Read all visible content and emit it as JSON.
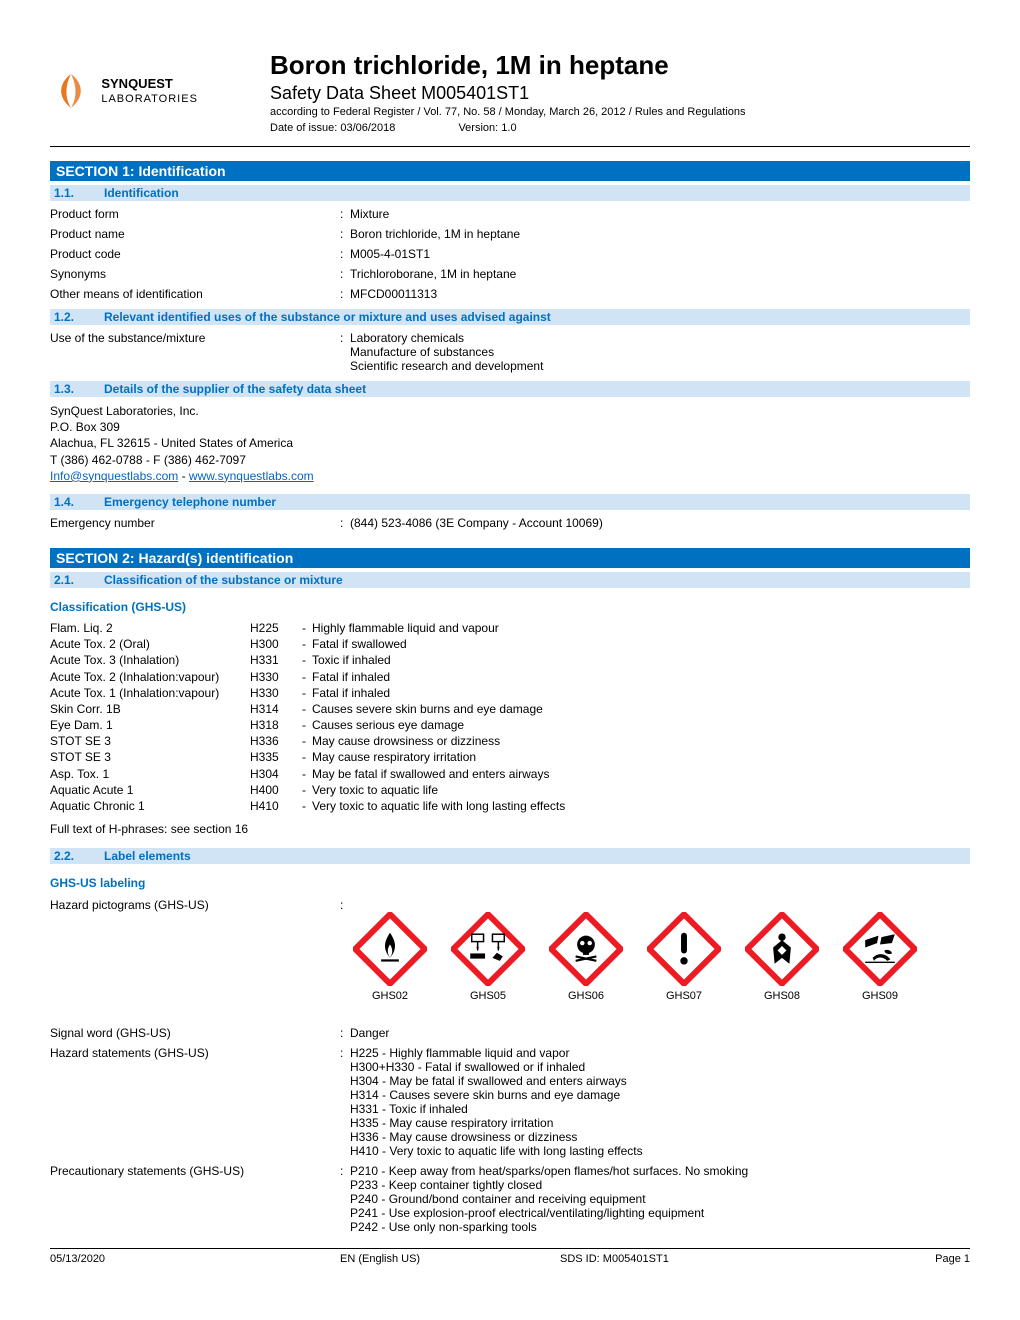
{
  "colors": {
    "section_bg": "#0070C0",
    "subsection_bg": "#D0E4F5",
    "subsection_text": "#0070C0",
    "link": "#0563C1",
    "ghs_red": "#ED1C24"
  },
  "logo": {
    "line1": "SYNQUEST",
    "line2": "LABORATORIES"
  },
  "title": "Boron trichloride, 1M in heptane",
  "subtitle": "Safety Data Sheet M005401ST1",
  "regulation": "according to Federal Register / Vol. 77, No. 58 / Monday, March 26, 2012 / Rules and Regulations",
  "date_of_issue_label": "Date of issue:",
  "date_of_issue": "03/06/2018",
  "version_label": "Version:",
  "version": "1.0",
  "section1": {
    "title": "SECTION 1: Identification",
    "s11": {
      "num": "1.1.",
      "title": "Identification"
    },
    "s12": {
      "num": "1.2.",
      "title": "Relevant identified uses of the substance or mixture and uses advised against"
    },
    "s13": {
      "num": "1.3.",
      "title": "Details of the supplier of the safety data sheet"
    },
    "s14": {
      "num": "1.4.",
      "title": "Emergency telephone number"
    },
    "fields": {
      "product_form": {
        "label": "Product form",
        "value": "Mixture"
      },
      "product_name": {
        "label": "Product name",
        "value": "Boron trichloride, 1M in heptane"
      },
      "product_code": {
        "label": "Product code",
        "value": "M005-4-01ST1"
      },
      "synonyms": {
        "label": "Synonyms",
        "value": "Trichloroborane, 1M in heptane"
      },
      "other_id": {
        "label": "Other means of identification",
        "value": "MFCD00011313"
      },
      "use": {
        "label": "Use of the substance/mixture",
        "value": "Laboratory chemicals\nManufacture of substances\nScientific research and development"
      },
      "emergency": {
        "label": "Emergency number",
        "value": "(844) 523-4086 (3E Company - Account 10069)"
      }
    },
    "supplier": {
      "name": "SynQuest Laboratories, Inc.",
      "pobox": "P.O. Box 309",
      "city": "Alachua, FL 32615 - United States of America",
      "phone": "T (386) 462-0788 - F (386) 462-7097",
      "email": "Info@synquestlabs.com",
      "sep": " - ",
      "web": "www.synquestlabs.com"
    }
  },
  "section2": {
    "title": "SECTION 2: Hazard(s) identification",
    "s21": {
      "num": "2.1.",
      "title": "Classification of the substance or mixture"
    },
    "s22": {
      "num": "2.2.",
      "title": "Label elements"
    },
    "class_heading": "Classification (GHS-US)",
    "labeling_heading": "GHS-US labeling",
    "classifications": [
      {
        "cls": "Flam. Liq. 2",
        "code": "H225",
        "desc": "Highly flammable liquid and vapour"
      },
      {
        "cls": "Acute Tox. 2 (Oral)",
        "code": "H300",
        "desc": "Fatal if swallowed"
      },
      {
        "cls": "Acute Tox. 3 (Inhalation)",
        "code": "H331",
        "desc": "Toxic if inhaled"
      },
      {
        "cls": "Acute Tox. 2 (Inhalation:vapour)",
        "code": "H330",
        "desc": "Fatal if inhaled"
      },
      {
        "cls": "Acute Tox. 1 (Inhalation:vapour)",
        "code": "H330",
        "desc": "Fatal if inhaled"
      },
      {
        "cls": "Skin Corr. 1B",
        "code": "H314",
        "desc": "Causes severe skin burns and eye damage"
      },
      {
        "cls": "Eye Dam. 1",
        "code": "H318",
        "desc": "Causes serious eye damage"
      },
      {
        "cls": "STOT SE 3",
        "code": "H336",
        "desc": "May cause drowsiness or dizziness"
      },
      {
        "cls": "STOT SE 3",
        "code": "H335",
        "desc": "May cause respiratory irritation"
      },
      {
        "cls": "Asp. Tox. 1",
        "code": "H304",
        "desc": "May be fatal if swallowed and enters airways"
      },
      {
        "cls": "Aquatic Acute 1",
        "code": "H400",
        "desc": "Very toxic to aquatic life"
      },
      {
        "cls": "Aquatic Chronic 1",
        "code": "H410",
        "desc": "Very toxic to aquatic life with long lasting effects"
      }
    ],
    "fulltext": "Full text of H-phrases: see section 16",
    "pictograms_label": "Hazard pictograms (GHS-US)",
    "pictograms": [
      {
        "label": "GHS02",
        "type": "flame"
      },
      {
        "label": "GHS05",
        "type": "corrosion"
      },
      {
        "label": "GHS06",
        "type": "skull"
      },
      {
        "label": "GHS07",
        "type": "exclaim"
      },
      {
        "label": "GHS08",
        "type": "health"
      },
      {
        "label": "GHS09",
        "type": "environment"
      }
    ],
    "signal_word": {
      "label": "Signal word (GHS-US)",
      "value": "Danger"
    },
    "hazard_statements": {
      "label": "Hazard statements (GHS-US)",
      "value": "H225 - Highly flammable liquid and vapor\nH300+H330  - Fatal if swallowed or if inhaled\nH304 - May be fatal if swallowed and enters airways\nH314 - Causes severe skin burns and eye damage\nH331 - Toxic if inhaled\nH335 - May cause respiratory irritation\nH336 - May cause drowsiness or dizziness\nH410 - Very toxic to aquatic life with long lasting effects"
    },
    "precautionary": {
      "label": "Precautionary statements (GHS-US)",
      "value": "P210 - Keep away from heat/sparks/open flames/hot surfaces. No smoking\nP233 - Keep container tightly closed\nP240 - Ground/bond container and receiving equipment\nP241 - Use explosion-proof electrical/ventilating/lighting equipment\nP242 - Use only non-sparking tools"
    }
  },
  "footer": {
    "date": "05/13/2020",
    "lang": "EN (English US)",
    "sds_id": "SDS ID: M005401ST1",
    "page": "Page 1"
  }
}
